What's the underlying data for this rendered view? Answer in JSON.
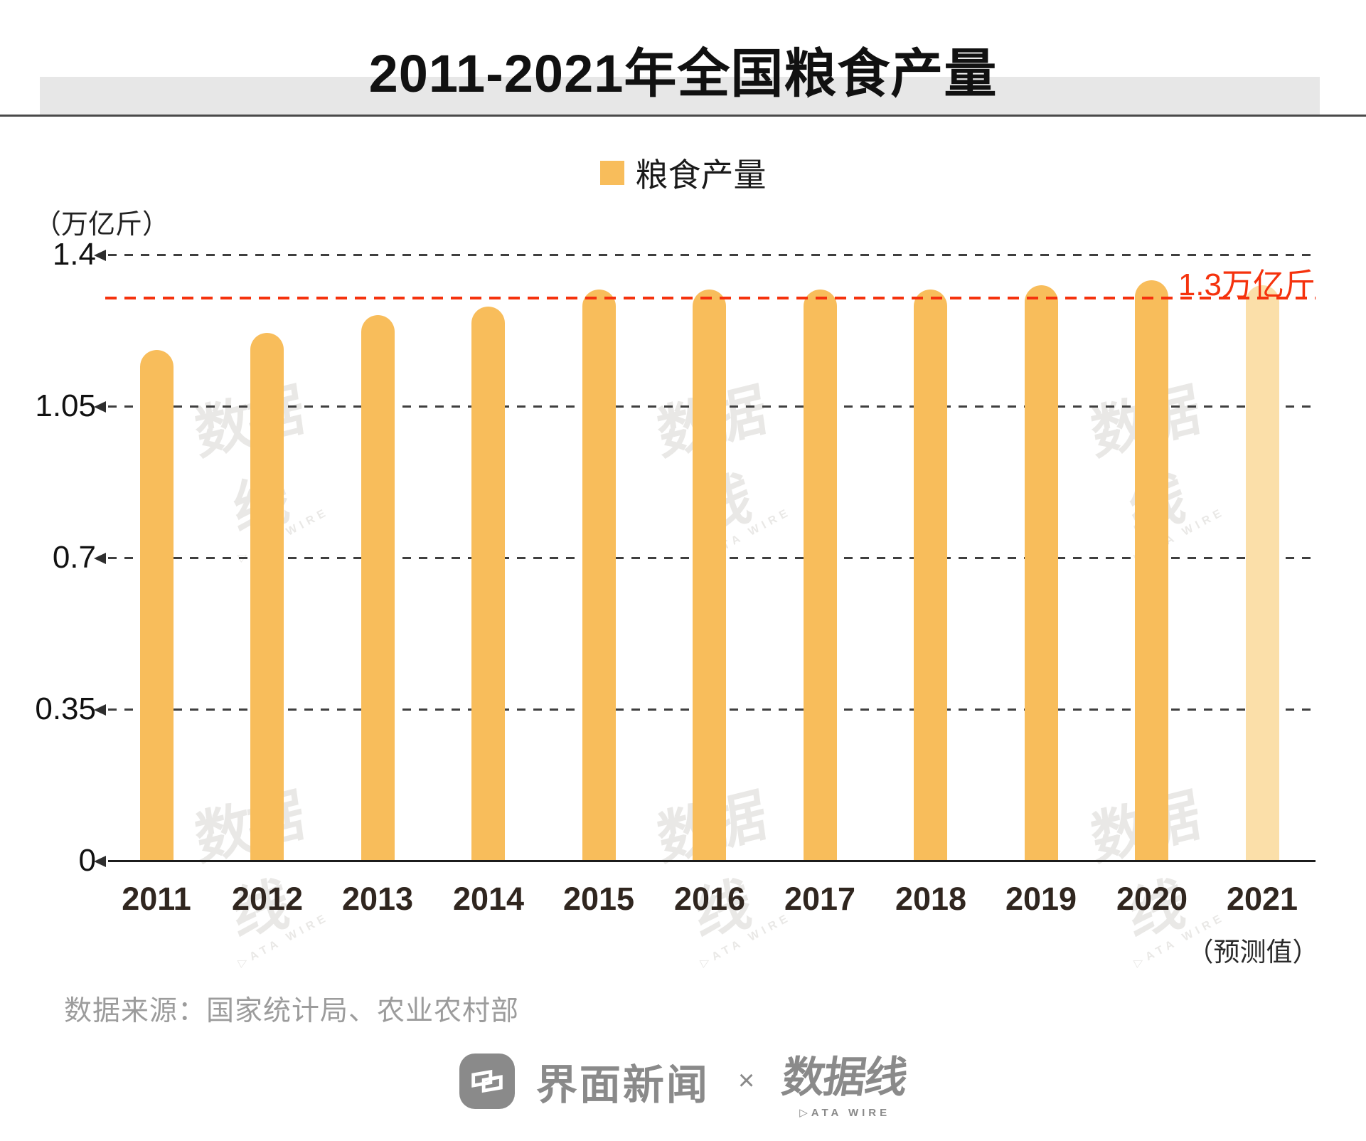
{
  "title": "2011-2021年全国粮食产量",
  "legend": {
    "label": "粮食产量",
    "swatch_color": "#F8BD5B"
  },
  "y_axis": {
    "unit_label": "（万亿斤）",
    "ticks": [
      {
        "label": "1.4",
        "value": 1.4
      },
      {
        "label": "1.05",
        "value": 1.05
      },
      {
        "label": "0.7",
        "value": 0.7
      },
      {
        "label": "0.35",
        "value": 0.35
      },
      {
        "label": "0",
        "value": 0
      }
    ]
  },
  "reference_line": {
    "label": "1.3万亿斤",
    "value": 1.3,
    "color": "#F5320D"
  },
  "chart_data": {
    "type": "bar",
    "title": "2011-2021年全国粮食产量",
    "series_name": "粮食产量",
    "categories": [
      "2011",
      "2012",
      "2013",
      "2014",
      "2015",
      "2016",
      "2017",
      "2018",
      "2019",
      "2020",
      "2021"
    ],
    "values": [
      1.18,
      1.22,
      1.26,
      1.28,
      1.32,
      1.32,
      1.32,
      1.32,
      1.33,
      1.34,
      1.33
    ],
    "unit": "万亿斤",
    "ylabel": "（万亿斤）",
    "ylim": [
      0,
      1.4
    ],
    "yticks": [
      0,
      0.35,
      0.7,
      1.05,
      1.4
    ],
    "reference_line_value": 1.3,
    "reference_line_label": "1.3万亿斤",
    "bar_color": "#F8BD5B",
    "forecast_bar_color": "#FBDFA9",
    "forecast_category": "2021",
    "forecast_note": "（预测值）",
    "grid": "dashed-horizontal",
    "legend_position": "top"
  },
  "x_axis": {
    "forecast_note": "（预测值）"
  },
  "source": "数据来源：国家统计局、农业农村部",
  "footer": {
    "brand1": "界面新闻",
    "cross": "×",
    "brand2": "数据线",
    "brand2_sub": "DATA WIRE"
  },
  "watermark": {
    "text": "数据线",
    "subtext": "DATA WIRE"
  }
}
